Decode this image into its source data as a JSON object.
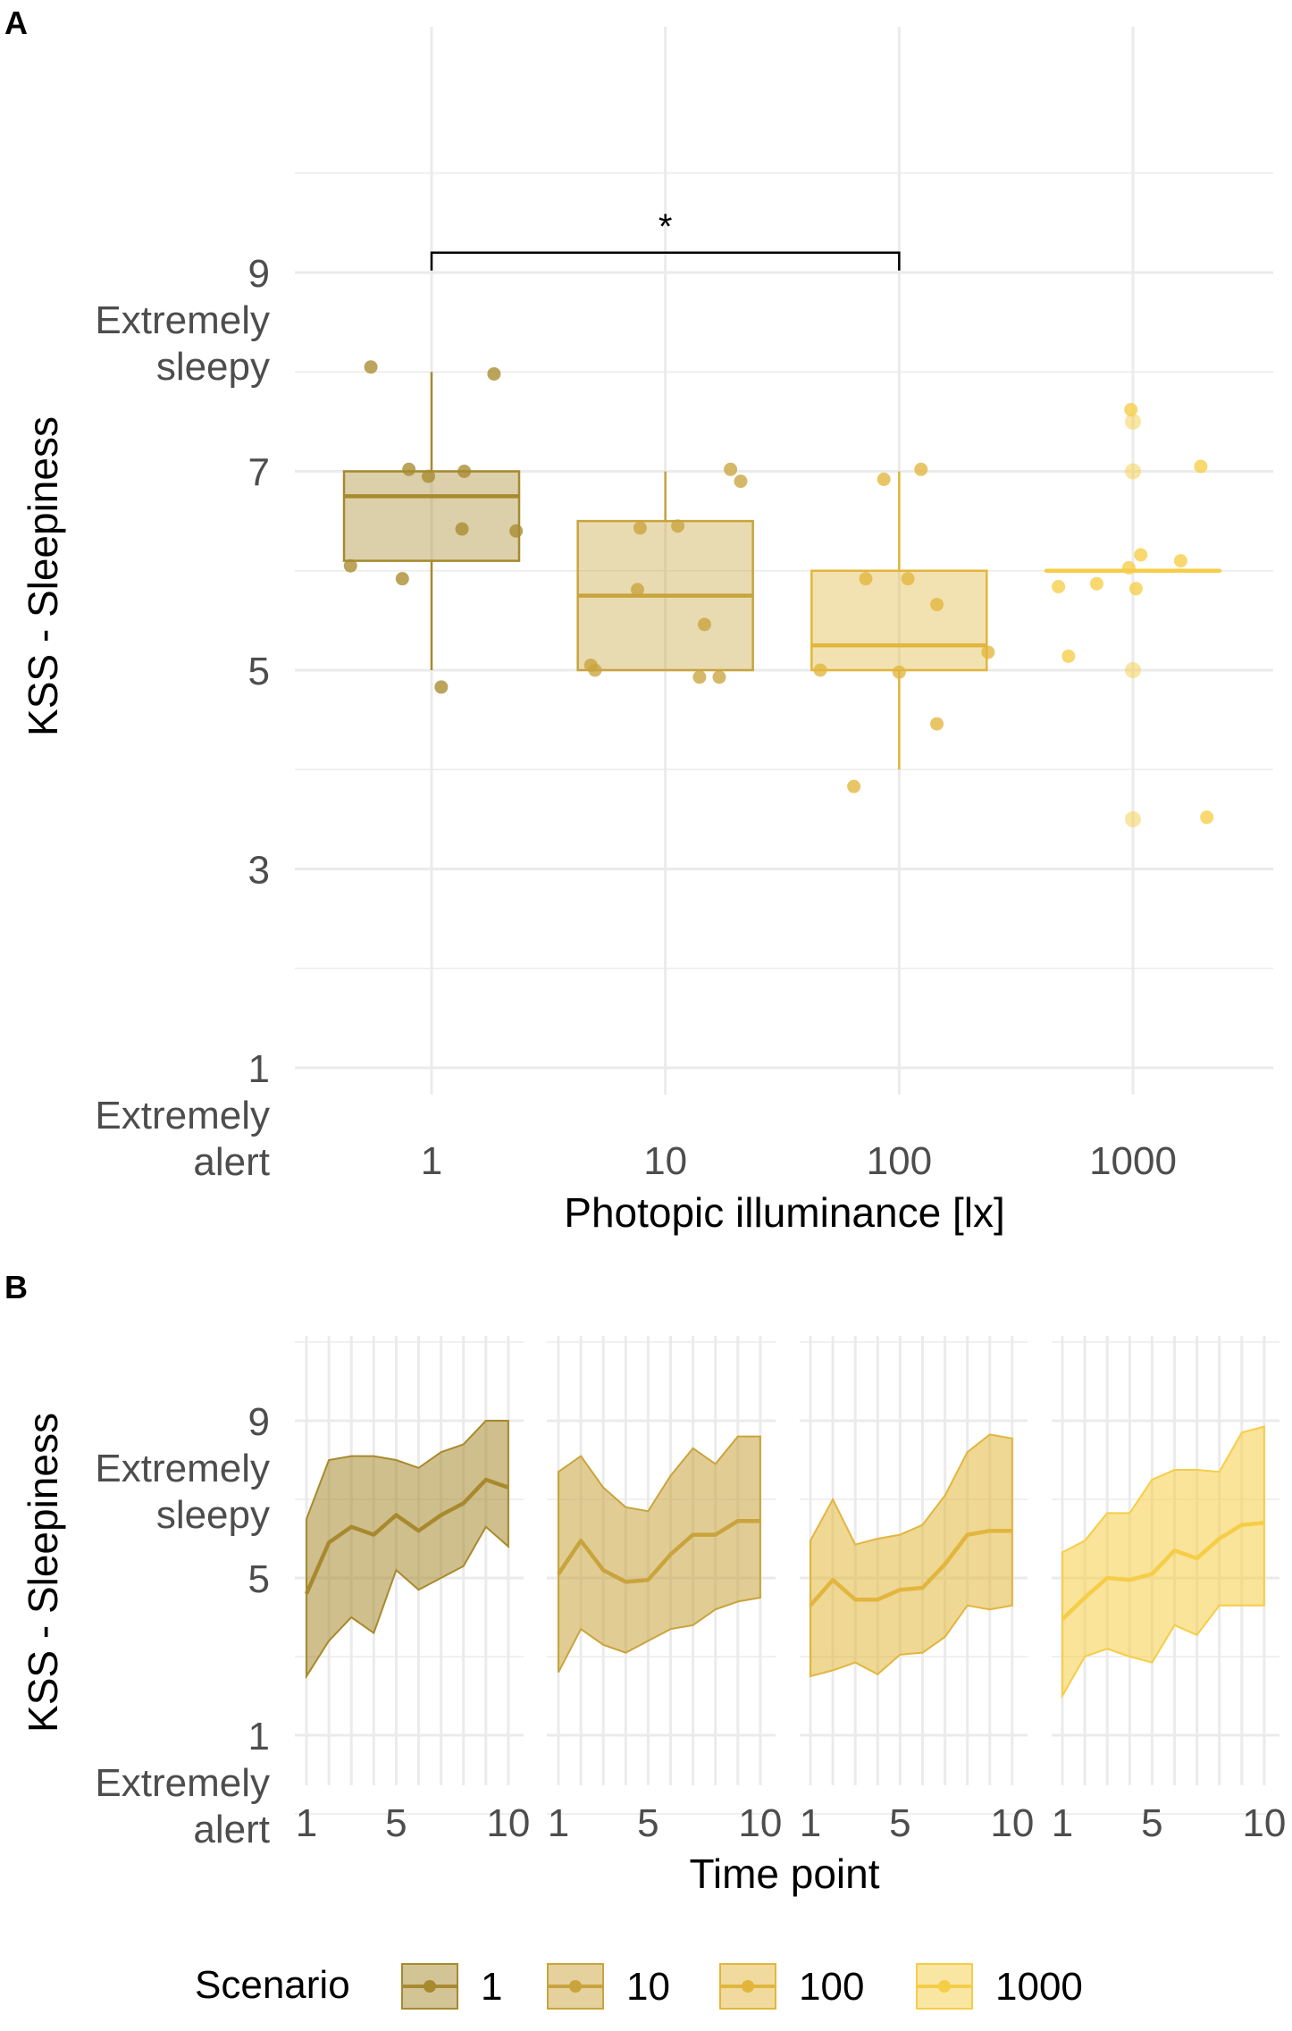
{
  "panel_a_label": "A",
  "panel_b_label": "B",
  "colors": {
    "1": "#a88a2e",
    "10": "#c9a43d",
    "100": "#e2b63d",
    "1000": "#f6cd47"
  },
  "chart_data": [
    {
      "type": "box",
      "panel": "A",
      "xlabel": "Photopic illuminance [lx]",
      "ylabel": "KSS - Sleepiness",
      "x_scale": "log",
      "categories": [
        "1",
        "10",
        "100",
        "1000"
      ],
      "y_ticks": [
        {
          "value": 9,
          "lines": [
            "9",
            "Extremely",
            "sleepy"
          ]
        },
        {
          "value": 7,
          "lines": [
            "7"
          ]
        },
        {
          "value": 5,
          "lines": [
            "5"
          ]
        },
        {
          "value": 3,
          "lines": [
            "3"
          ]
        },
        {
          "value": 1,
          "lines": [
            "1",
            "Extremely",
            "alert"
          ]
        }
      ],
      "ylim": [
        0.5,
        10.5
      ],
      "grid": true,
      "boxes": [
        {
          "x": 1,
          "q1": 6.1,
          "median": 6.75,
          "q3": 7.0,
          "whisker_low": 5.0,
          "whisker_high": 8.0
        },
        {
          "x": 10,
          "q1": 5.0,
          "median": 5.75,
          "q3": 6.5,
          "whisker_low": 5.0,
          "whisker_high": 7.0
        },
        {
          "x": 100,
          "q1": 5.0,
          "median": 5.25,
          "q3": 6.0,
          "whisker_low": 4.0,
          "whisker_high": 7.0
        },
        {
          "x": 1000,
          "q1": 6.0,
          "median": 6.0,
          "q3": 6.0,
          "whisker_low": 6.0,
          "whisker_high": 6.0
        }
      ],
      "outliers": [
        {
          "x": 1000,
          "y": 7.5
        },
        {
          "x": 1000,
          "y": 7.0
        },
        {
          "x": 1000,
          "y": 5.0
        },
        {
          "x": 1000,
          "y": 3.5
        }
      ],
      "points": [
        {
          "x": 0.45,
          "y": 6.05,
          "s": "1"
        },
        {
          "x": 0.55,
          "y": 8.05,
          "s": "1"
        },
        {
          "x": 0.75,
          "y": 5.92,
          "s": "1"
        },
        {
          "x": 0.8,
          "y": 7.02,
          "s": "1"
        },
        {
          "x": 0.97,
          "y": 6.95,
          "s": "1"
        },
        {
          "x": 1.1,
          "y": 4.83,
          "s": "1"
        },
        {
          "x": 1.38,
          "y": 7.0,
          "s": "1"
        },
        {
          "x": 1.35,
          "y": 6.42,
          "s": "1"
        },
        {
          "x": 1.85,
          "y": 7.98,
          "s": "1"
        },
        {
          "x": 2.3,
          "y": 6.4,
          "s": "1"
        },
        {
          "x": 4.8,
          "y": 5.05,
          "s": "10"
        },
        {
          "x": 5.0,
          "y": 5.0,
          "s": "10"
        },
        {
          "x": 7.8,
          "y": 6.43,
          "s": "10"
        },
        {
          "x": 7.6,
          "y": 5.81,
          "s": "10"
        },
        {
          "x": 11.3,
          "y": 6.45,
          "s": "10"
        },
        {
          "x": 14.0,
          "y": 4.93,
          "s": "10"
        },
        {
          "x": 14.7,
          "y": 5.46,
          "s": "10"
        },
        {
          "x": 17.0,
          "y": 4.93,
          "s": "10"
        },
        {
          "x": 19.0,
          "y": 7.02,
          "s": "10"
        },
        {
          "x": 21.0,
          "y": 6.9,
          "s": "10"
        },
        {
          "x": 46.0,
          "y": 5.0,
          "s": "100"
        },
        {
          "x": 64.0,
          "y": 3.83,
          "s": "100"
        },
        {
          "x": 72.0,
          "y": 5.92,
          "s": "100"
        },
        {
          "x": 86.0,
          "y": 6.92,
          "s": "100"
        },
        {
          "x": 100.0,
          "y": 4.98,
          "s": "100"
        },
        {
          "x": 109.0,
          "y": 5.92,
          "s": "100"
        },
        {
          "x": 124.0,
          "y": 7.02,
          "s": "100"
        },
        {
          "x": 145.0,
          "y": 5.66,
          "s": "100"
        },
        {
          "x": 145.0,
          "y": 4.46,
          "s": "100"
        },
        {
          "x": 240.0,
          "y": 5.18,
          "s": "100"
        },
        {
          "x": 480.0,
          "y": 5.84,
          "s": "1000"
        },
        {
          "x": 530.0,
          "y": 5.14,
          "s": "1000"
        },
        {
          "x": 700.0,
          "y": 5.87,
          "s": "1000"
        },
        {
          "x": 960.0,
          "y": 6.03,
          "s": "1000"
        },
        {
          "x": 980.0,
          "y": 7.62,
          "s": "1000"
        },
        {
          "x": 1030.0,
          "y": 5.82,
          "s": "1000"
        },
        {
          "x": 1080.0,
          "y": 6.16,
          "s": "1000"
        },
        {
          "x": 1600.0,
          "y": 6.1,
          "s": "1000"
        },
        {
          "x": 1950.0,
          "y": 7.05,
          "s": "1000"
        },
        {
          "x": 2070.0,
          "y": 3.52,
          "s": "1000"
        }
      ],
      "annotation": {
        "label": "*",
        "x_from": 1,
        "x_to": 100,
        "y": 9.2
      }
    },
    {
      "type": "line",
      "panel": "B",
      "xlabel": "Time point",
      "ylabel": "KSS - Sleepiness",
      "x_ticks": [
        "1",
        "5",
        "10"
      ],
      "xlim": [
        1,
        10
      ],
      "y_ticks": [
        {
          "value": 9,
          "lines": [
            "9",
            "Extremely",
            "sleepy"
          ]
        },
        {
          "value": 5,
          "lines": [
            "5"
          ]
        },
        {
          "value": 1,
          "lines": [
            "1",
            "Extremely",
            "alert"
          ]
        }
      ],
      "ylim": [
        -2.5,
        10.5
      ],
      "grid": true,
      "x": [
        1,
        2,
        3,
        4,
        5,
        6,
        7,
        8,
        9,
        10
      ],
      "series": [
        {
          "name": "1",
          "mean": [
            4.6,
            5.9,
            6.3,
            6.1,
            6.6,
            6.2,
            6.6,
            6.9,
            7.5,
            7.3
          ],
          "lower": [
            2.5,
            3.4,
            4.0,
            3.6,
            5.2,
            4.7,
            5.0,
            5.3,
            6.3,
            5.8
          ],
          "upper": [
            6.5,
            8.0,
            8.1,
            8.1,
            8.0,
            7.8,
            8.2,
            8.4,
            9.0,
            9.0
          ]
        },
        {
          "name": "10",
          "mean": [
            5.1,
            5.95,
            5.2,
            4.9,
            4.95,
            5.6,
            6.1,
            6.1,
            6.45,
            6.45
          ],
          "lower": [
            2.6,
            3.7,
            3.3,
            3.1,
            3.4,
            3.7,
            3.8,
            4.2,
            4.4,
            4.5
          ],
          "upper": [
            7.7,
            8.1,
            7.3,
            6.8,
            6.7,
            7.6,
            8.3,
            7.9,
            8.6,
            8.6
          ]
        },
        {
          "name": "100",
          "mean": [
            4.3,
            4.95,
            4.45,
            4.45,
            4.7,
            4.75,
            5.35,
            6.1,
            6.2,
            6.2
          ],
          "lower": [
            2.5,
            2.65,
            2.85,
            2.55,
            3.05,
            3.1,
            3.5,
            4.3,
            4.2,
            4.3
          ],
          "upper": [
            5.95,
            7.0,
            5.85,
            6.0,
            6.1,
            6.35,
            7.1,
            8.2,
            8.65,
            8.55
          ]
        },
        {
          "name": "1000",
          "mean": [
            3.95,
            4.5,
            5.0,
            4.95,
            5.1,
            5.7,
            5.5,
            6.0,
            6.35,
            6.4
          ],
          "lower": [
            2.0,
            3.0,
            3.2,
            3.0,
            2.85,
            3.8,
            3.55,
            4.3,
            4.3,
            4.3
          ],
          "upper": [
            5.65,
            5.95,
            6.65,
            6.65,
            7.5,
            7.75,
            7.75,
            7.7,
            8.7,
            8.85
          ]
        }
      ]
    }
  ],
  "legend": {
    "title": "Scenario",
    "items": [
      "1",
      "10",
      "100",
      "1000"
    ]
  }
}
